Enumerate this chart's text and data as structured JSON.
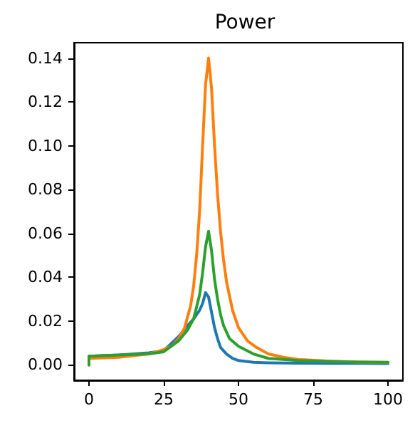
{
  "chart_data": {
    "type": "line",
    "title": "Power",
    "xlim": [
      -5,
      105
    ],
    "xticks": [
      0,
      25,
      50,
      75,
      100
    ],
    "ylim": [
      -0.007,
      0.147
    ],
    "yticks": [
      {
        "value": 0,
        "label": "0.00"
      },
      {
        "value": 0.02,
        "label": "0.02"
      },
      {
        "value": 0.04,
        "label": "0.04"
      },
      {
        "value": 0.06,
        "label": "0.06"
      },
      {
        "value": 0.08,
        "label": "0.08"
      },
      {
        "value": 0.1,
        "label": "0.10"
      },
      {
        "value": 0.12,
        "label": "0.12"
      },
      {
        "value": 0.14,
        "label": "0.14"
      }
    ],
    "grid": false,
    "marker": "none",
    "line_style": "solid",
    "series": [
      {
        "color": "#1f77b4",
        "x": [
          0,
          0,
          10,
          20,
          25,
          30,
          33,
          35,
          37,
          38,
          39,
          40,
          41,
          42,
          43,
          44,
          46,
          48,
          50,
          55,
          60,
          70,
          80,
          90,
          100
        ],
        "values": [
          0,
          0.004,
          0.0045,
          0.0055,
          0.0065,
          0.013,
          0.018,
          0.021,
          0.025,
          0.028,
          0.033,
          0.031,
          0.024,
          0.017,
          0.012,
          0.008,
          0.005,
          0.003,
          0.002,
          0.0012,
          0.001,
          0.0008,
          0.0007,
          0.0007,
          0.0006
        ]
      },
      {
        "color": "#ff7f0e",
        "x": [
          0,
          0,
          10,
          20,
          25,
          28,
          30,
          32,
          34,
          35,
          36,
          37,
          38,
          39,
          40,
          41,
          42,
          43,
          44,
          45,
          46,
          48,
          50,
          53,
          56,
          60,
          65,
          70,
          80,
          90,
          100
        ],
        "values": [
          0,
          0.003,
          0.0035,
          0.005,
          0.007,
          0.009,
          0.012,
          0.017,
          0.027,
          0.036,
          0.05,
          0.07,
          0.1,
          0.128,
          0.14,
          0.126,
          0.1,
          0.078,
          0.061,
          0.048,
          0.038,
          0.025,
          0.017,
          0.011,
          0.008,
          0.005,
          0.0035,
          0.0025,
          0.0018,
          0.0013,
          0.0011
        ]
      },
      {
        "color": "#2ca02c",
        "x": [
          0,
          0,
          10,
          20,
          25,
          30,
          33,
          35,
          37,
          38,
          39,
          40,
          41,
          42,
          43,
          44,
          45,
          47,
          50,
          55,
          60,
          70,
          80,
          90,
          100
        ],
        "values": [
          0,
          0.004,
          0.0045,
          0.005,
          0.006,
          0.011,
          0.016,
          0.021,
          0.032,
          0.042,
          0.054,
          0.061,
          0.052,
          0.039,
          0.03,
          0.023,
          0.018,
          0.012,
          0.0085,
          0.005,
          0.003,
          0.002,
          0.0016,
          0.0013,
          0.0012
        ]
      }
    ]
  }
}
